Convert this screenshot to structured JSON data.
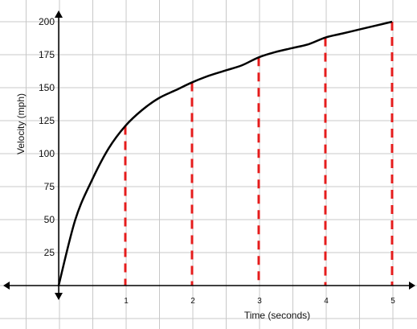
{
  "chart_data": {
    "type": "line",
    "title": "",
    "xlabel": "Time (seconds)",
    "ylabel": "Velocity (mph)",
    "xlim": [
      0,
      5
    ],
    "ylim": [
      0,
      200
    ],
    "x_ticks": [
      1,
      2,
      3,
      4,
      5
    ],
    "y_ticks": [
      25,
      50,
      75,
      100,
      125,
      150,
      175,
      200
    ],
    "grid": true,
    "legend": "none",
    "colors": {
      "curve": "#000000",
      "markers": "#e51c1c",
      "grid": "#c8c8c8",
      "axis": "#000000"
    },
    "series": [
      {
        "x": [
          0,
          0.25,
          0.5,
          0.75,
          1,
          1.25,
          1.5,
          1.75,
          2,
          2.25,
          2.5,
          2.75,
          3,
          3.25,
          3.5,
          3.75,
          4,
          4.25,
          4.5,
          4.75,
          5
        ],
        "values": [
          0,
          50,
          80,
          104,
          121,
          133,
          142,
          148,
          154,
          159,
          163,
          167,
          173,
          177,
          180,
          183,
          188,
          191,
          194,
          197,
          200
        ]
      }
    ],
    "vertical_markers": [
      {
        "x": 1,
        "y": 121
      },
      {
        "x": 2,
        "y": 154
      },
      {
        "x": 3,
        "y": 173
      },
      {
        "x": 4,
        "y": 188
      },
      {
        "x": 5,
        "y": 200
      }
    ]
  }
}
